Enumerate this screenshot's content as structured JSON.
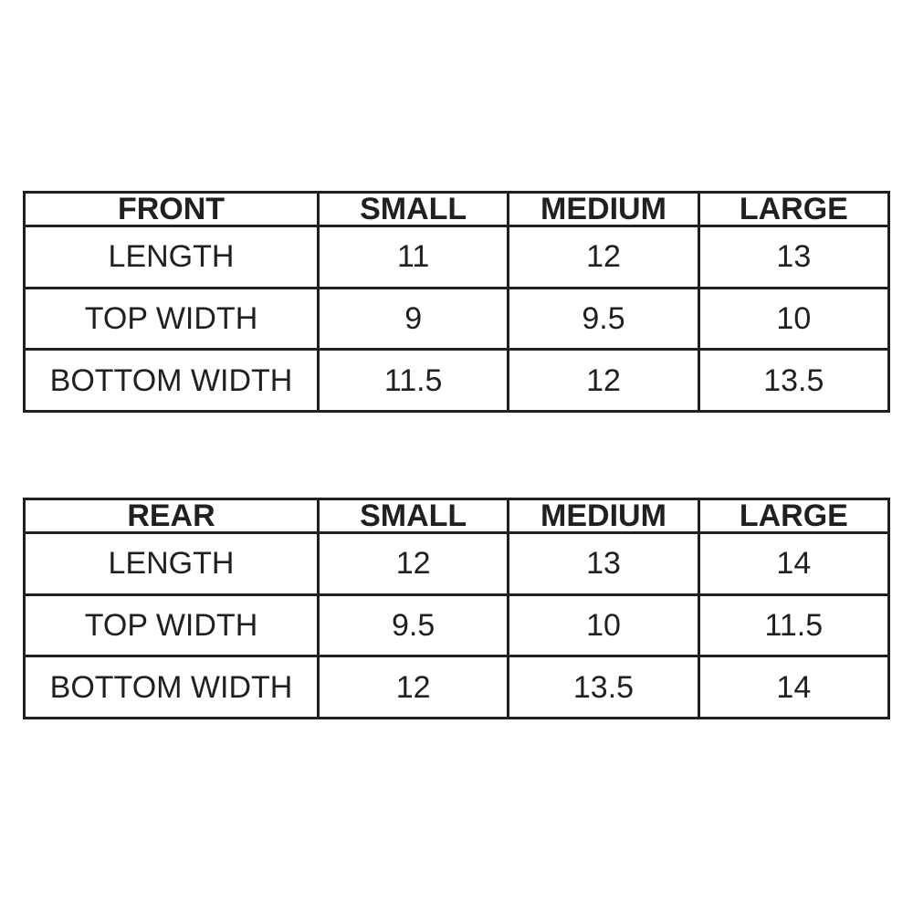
{
  "page": {
    "background_color": "#ffffff",
    "border_color": "#231f20",
    "text_color": "#231f20"
  },
  "chart_data": [
    {
      "type": "table",
      "title": "FRONT",
      "columns": [
        "FRONT",
        "SMALL",
        "MEDIUM",
        "LARGE"
      ],
      "rows": [
        [
          "LENGTH",
          "11",
          "12",
          "13"
        ],
        [
          "TOP WIDTH",
          "9",
          "9.5",
          "10"
        ],
        [
          "BOTTOM WIDTH",
          "11.5",
          "12",
          "13.5"
        ]
      ]
    },
    {
      "type": "table",
      "title": "REAR",
      "columns": [
        "REAR",
        "SMALL",
        "MEDIUM",
        "LARGE"
      ],
      "rows": [
        [
          "LENGTH",
          "12",
          "13",
          "14"
        ],
        [
          "TOP WIDTH",
          "9.5",
          "10",
          "11.5"
        ],
        [
          "BOTTOM WIDTH",
          "12",
          "13.5",
          "14"
        ]
      ]
    }
  ]
}
